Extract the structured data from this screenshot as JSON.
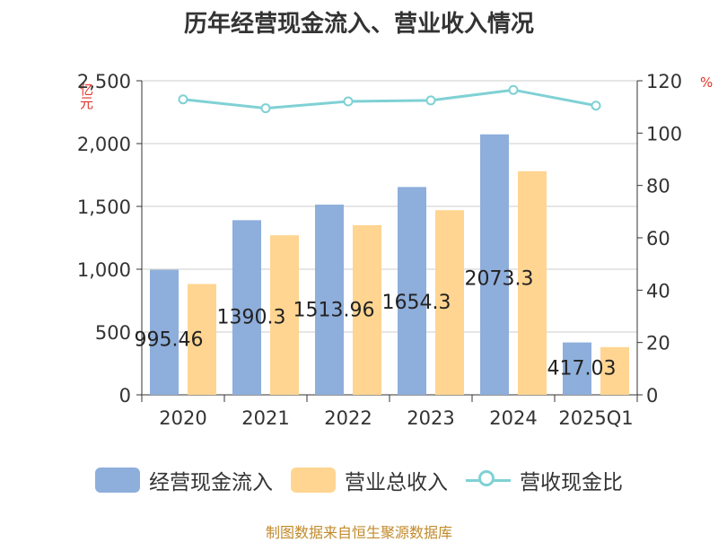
{
  "title": "历年经营现金流入、营业收入情况",
  "unit_left": "亿元",
  "unit_right": "%",
  "footer": "制图数据来自恒生聚源数据库",
  "colors": {
    "cash": "#8eaedb",
    "revenue": "#ffd591",
    "ratio": "#7fd1d4",
    "unit": "#e0342a",
    "footer": "#c28a2a"
  },
  "legend": [
    {
      "label": "经营现金流入",
      "kind": "bar",
      "color_key": "cash"
    },
    {
      "label": "营业总收入",
      "kind": "bar",
      "color_key": "revenue"
    },
    {
      "label": "营收现金比",
      "kind": "line",
      "color_key": "ratio"
    }
  ],
  "chart_data": {
    "type": "bar",
    "categories": [
      "2020",
      "2021",
      "2022",
      "2023",
      "2024",
      "2025Q1"
    ],
    "series": [
      {
        "name": "经营现金流入",
        "type": "bar",
        "axis": "left",
        "values": [
          995.46,
          1390.3,
          1513.96,
          1654.3,
          2073.3,
          417.03
        ],
        "data_labels": [
          "995.46",
          "1390.3",
          "1513.96",
          "1654.3",
          "2073.3",
          "417.03"
        ]
      },
      {
        "name": "营业总收入",
        "type": "bar",
        "axis": "left",
        "values": [
          882,
          1270,
          1350,
          1470,
          1780,
          380
        ]
      },
      {
        "name": "营收现金比",
        "type": "line",
        "axis": "right",
        "values": [
          112.9,
          109.5,
          112.1,
          112.5,
          116.5,
          110.5
        ]
      }
    ],
    "y_left": {
      "min": 0,
      "max": 2500,
      "ticks": [
        0,
        500,
        1000,
        1500,
        2000,
        2500
      ],
      "tick_labels": [
        "0",
        "500",
        "1,000",
        "1,500",
        "2,000",
        "2,500"
      ]
    },
    "y_right": {
      "min": 0,
      "max": 120,
      "ticks": [
        0,
        20,
        40,
        60,
        80,
        100,
        120
      ],
      "tick_labels": [
        "0",
        "20",
        "40",
        "60",
        "80",
        "100",
        "120"
      ]
    },
    "grid": true,
    "legend_position": "bottom"
  }
}
